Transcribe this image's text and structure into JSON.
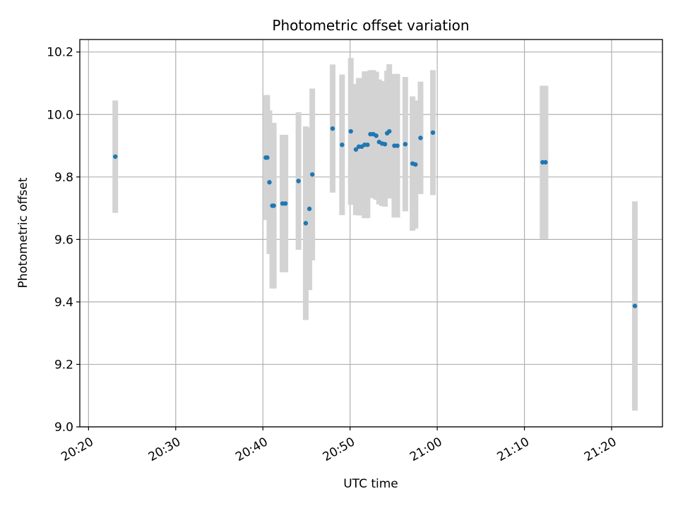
{
  "chart_data": {
    "type": "scatter",
    "title": "Photometric offset variation",
    "xlabel": "UTC time",
    "ylabel": "Photometric offset",
    "xlim": [
      "20:19:00",
      "21:25:50"
    ],
    "ylim": [
      9.0,
      10.24
    ],
    "x_ticks": [
      "20:20",
      "20:30",
      "20:40",
      "20:50",
      "21:00",
      "21:10",
      "21:20"
    ],
    "y_ticks": [
      "9.0",
      "9.2",
      "9.4",
      "9.6",
      "9.8",
      "10.0",
      "10.2"
    ],
    "grid": true,
    "legend": "none",
    "colors": {
      "point": "#1f77b4",
      "errorbar": "#d3d3d3",
      "grid": "#b0b0b0"
    },
    "points": [
      {
        "x": "20:23:04",
        "y": 9.865,
        "yerr": 0.18
      },
      {
        "x": "20:40:20",
        "y": 9.862,
        "yerr": 0.2
      },
      {
        "x": "20:40:30",
        "y": 9.862,
        "yerr": 0.2
      },
      {
        "x": "20:40:45",
        "y": 9.783,
        "yerr": 0.23
      },
      {
        "x": "20:41:05",
        "y": 9.708,
        "yerr": 0.265
      },
      {
        "x": "20:41:15",
        "y": 9.708,
        "yerr": 0.265
      },
      {
        "x": "20:42:15",
        "y": 9.715,
        "yerr": 0.22
      },
      {
        "x": "20:42:35",
        "y": 9.715,
        "yerr": 0.22
      },
      {
        "x": "20:44:05",
        "y": 9.787,
        "yerr": 0.22
      },
      {
        "x": "20:44:55",
        "y": 9.652,
        "yerr": 0.31
      },
      {
        "x": "20:45:20",
        "y": 9.698,
        "yerr": 0.26
      },
      {
        "x": "20:45:40",
        "y": 9.808,
        "yerr": 0.275
      },
      {
        "x": "20:48:00",
        "y": 9.955,
        "yerr": 0.205
      },
      {
        "x": "20:49:05",
        "y": 9.903,
        "yerr": 0.225
      },
      {
        "x": "20:50:05",
        "y": 9.946,
        "yerr": 0.235
      },
      {
        "x": "20:50:40",
        "y": 9.888,
        "yerr": 0.21
      },
      {
        "x": "20:51:00",
        "y": 9.897,
        "yerr": 0.22
      },
      {
        "x": "20:51:20",
        "y": 9.897,
        "yerr": 0.22
      },
      {
        "x": "20:51:40",
        "y": 9.903,
        "yerr": 0.235
      },
      {
        "x": "20:52:00",
        "y": 9.903,
        "yerr": 0.235
      },
      {
        "x": "20:52:20",
        "y": 9.937,
        "yerr": 0.205
      },
      {
        "x": "20:52:40",
        "y": 9.937,
        "yerr": 0.205
      },
      {
        "x": "20:53:00",
        "y": 9.932,
        "yerr": 0.205
      },
      {
        "x": "20:53:20",
        "y": 9.912,
        "yerr": 0.2
      },
      {
        "x": "20:53:40",
        "y": 9.907,
        "yerr": 0.2
      },
      {
        "x": "20:54:00",
        "y": 9.905,
        "yerr": 0.2
      },
      {
        "x": "20:54:15",
        "y": 9.94,
        "yerr": 0.2
      },
      {
        "x": "20:54:30",
        "y": 9.946,
        "yerr": 0.215
      },
      {
        "x": "20:55:05",
        "y": 9.9,
        "yerr": 0.23
      },
      {
        "x": "20:55:25",
        "y": 9.9,
        "yerr": 0.23
      },
      {
        "x": "20:56:20",
        "y": 9.905,
        "yerr": 0.215
      },
      {
        "x": "20:57:10",
        "y": 9.843,
        "yerr": 0.215
      },
      {
        "x": "20:57:30",
        "y": 9.84,
        "yerr": 0.205
      },
      {
        "x": "20:58:05",
        "y": 9.925,
        "yerr": 0.18
      },
      {
        "x": "20:59:30",
        "y": 9.942,
        "yerr": 0.2
      },
      {
        "x": "21:12:05",
        "y": 9.847,
        "yerr": 0.245
      },
      {
        "x": "21:12:25",
        "y": 9.847,
        "yerr": 0.245
      },
      {
        "x": "21:22:40",
        "y": 9.387,
        "yerr": 0.335
      }
    ]
  }
}
